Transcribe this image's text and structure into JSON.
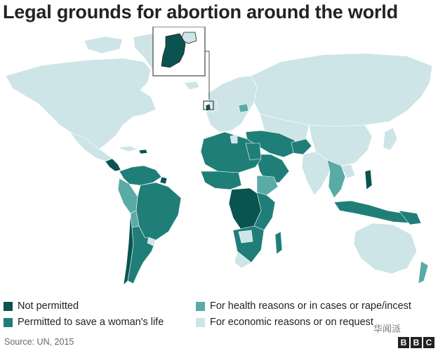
{
  "title": "Legal grounds for abortion around the world",
  "colors": {
    "not_permitted": "#0b5350",
    "save_life": "#1f7f78",
    "health_rape": "#5aaaa6",
    "economic": "#cde5e6",
    "water": "#ffffff",
    "border": "#ffffff"
  },
  "legend": {
    "not_permitted": "Not permitted",
    "save_life": "Permitted to save a woman's life",
    "health_rape": "For health reasons or in cases or rape/incest",
    "economic": "For economic reasons or on request"
  },
  "source": "Source: UN, 2015",
  "logo": {
    "text": "BBC",
    "letters": [
      "B",
      "B",
      "C"
    ]
  },
  "watermark": "华闻派"
}
